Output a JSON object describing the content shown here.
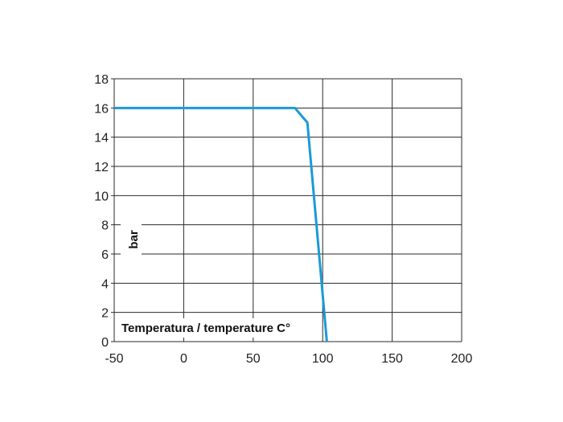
{
  "chart_data": {
    "type": "line",
    "title": "",
    "xlabel": "Temperatura / temperature C°",
    "ylabel": "bar",
    "xlim": [
      -50,
      200
    ],
    "ylim": [
      0,
      18
    ],
    "x_ticks": [
      -50,
      0,
      50,
      100,
      150,
      200
    ],
    "y_ticks": [
      0,
      2,
      4,
      6,
      8,
      10,
      12,
      14,
      16,
      18
    ],
    "grid": true,
    "series": [
      {
        "color": "#1a9ad6",
        "points": [
          {
            "x": -50,
            "y": 16
          },
          {
            "x": 0,
            "y": 16
          },
          {
            "x": 80,
            "y": 16
          },
          {
            "x": 89,
            "y": 15
          },
          {
            "x": 103,
            "y": 0
          }
        ]
      }
    ]
  },
  "colors": {
    "line": "#1a9ad6",
    "grid": "#2a2a2a",
    "text": "#222222"
  }
}
